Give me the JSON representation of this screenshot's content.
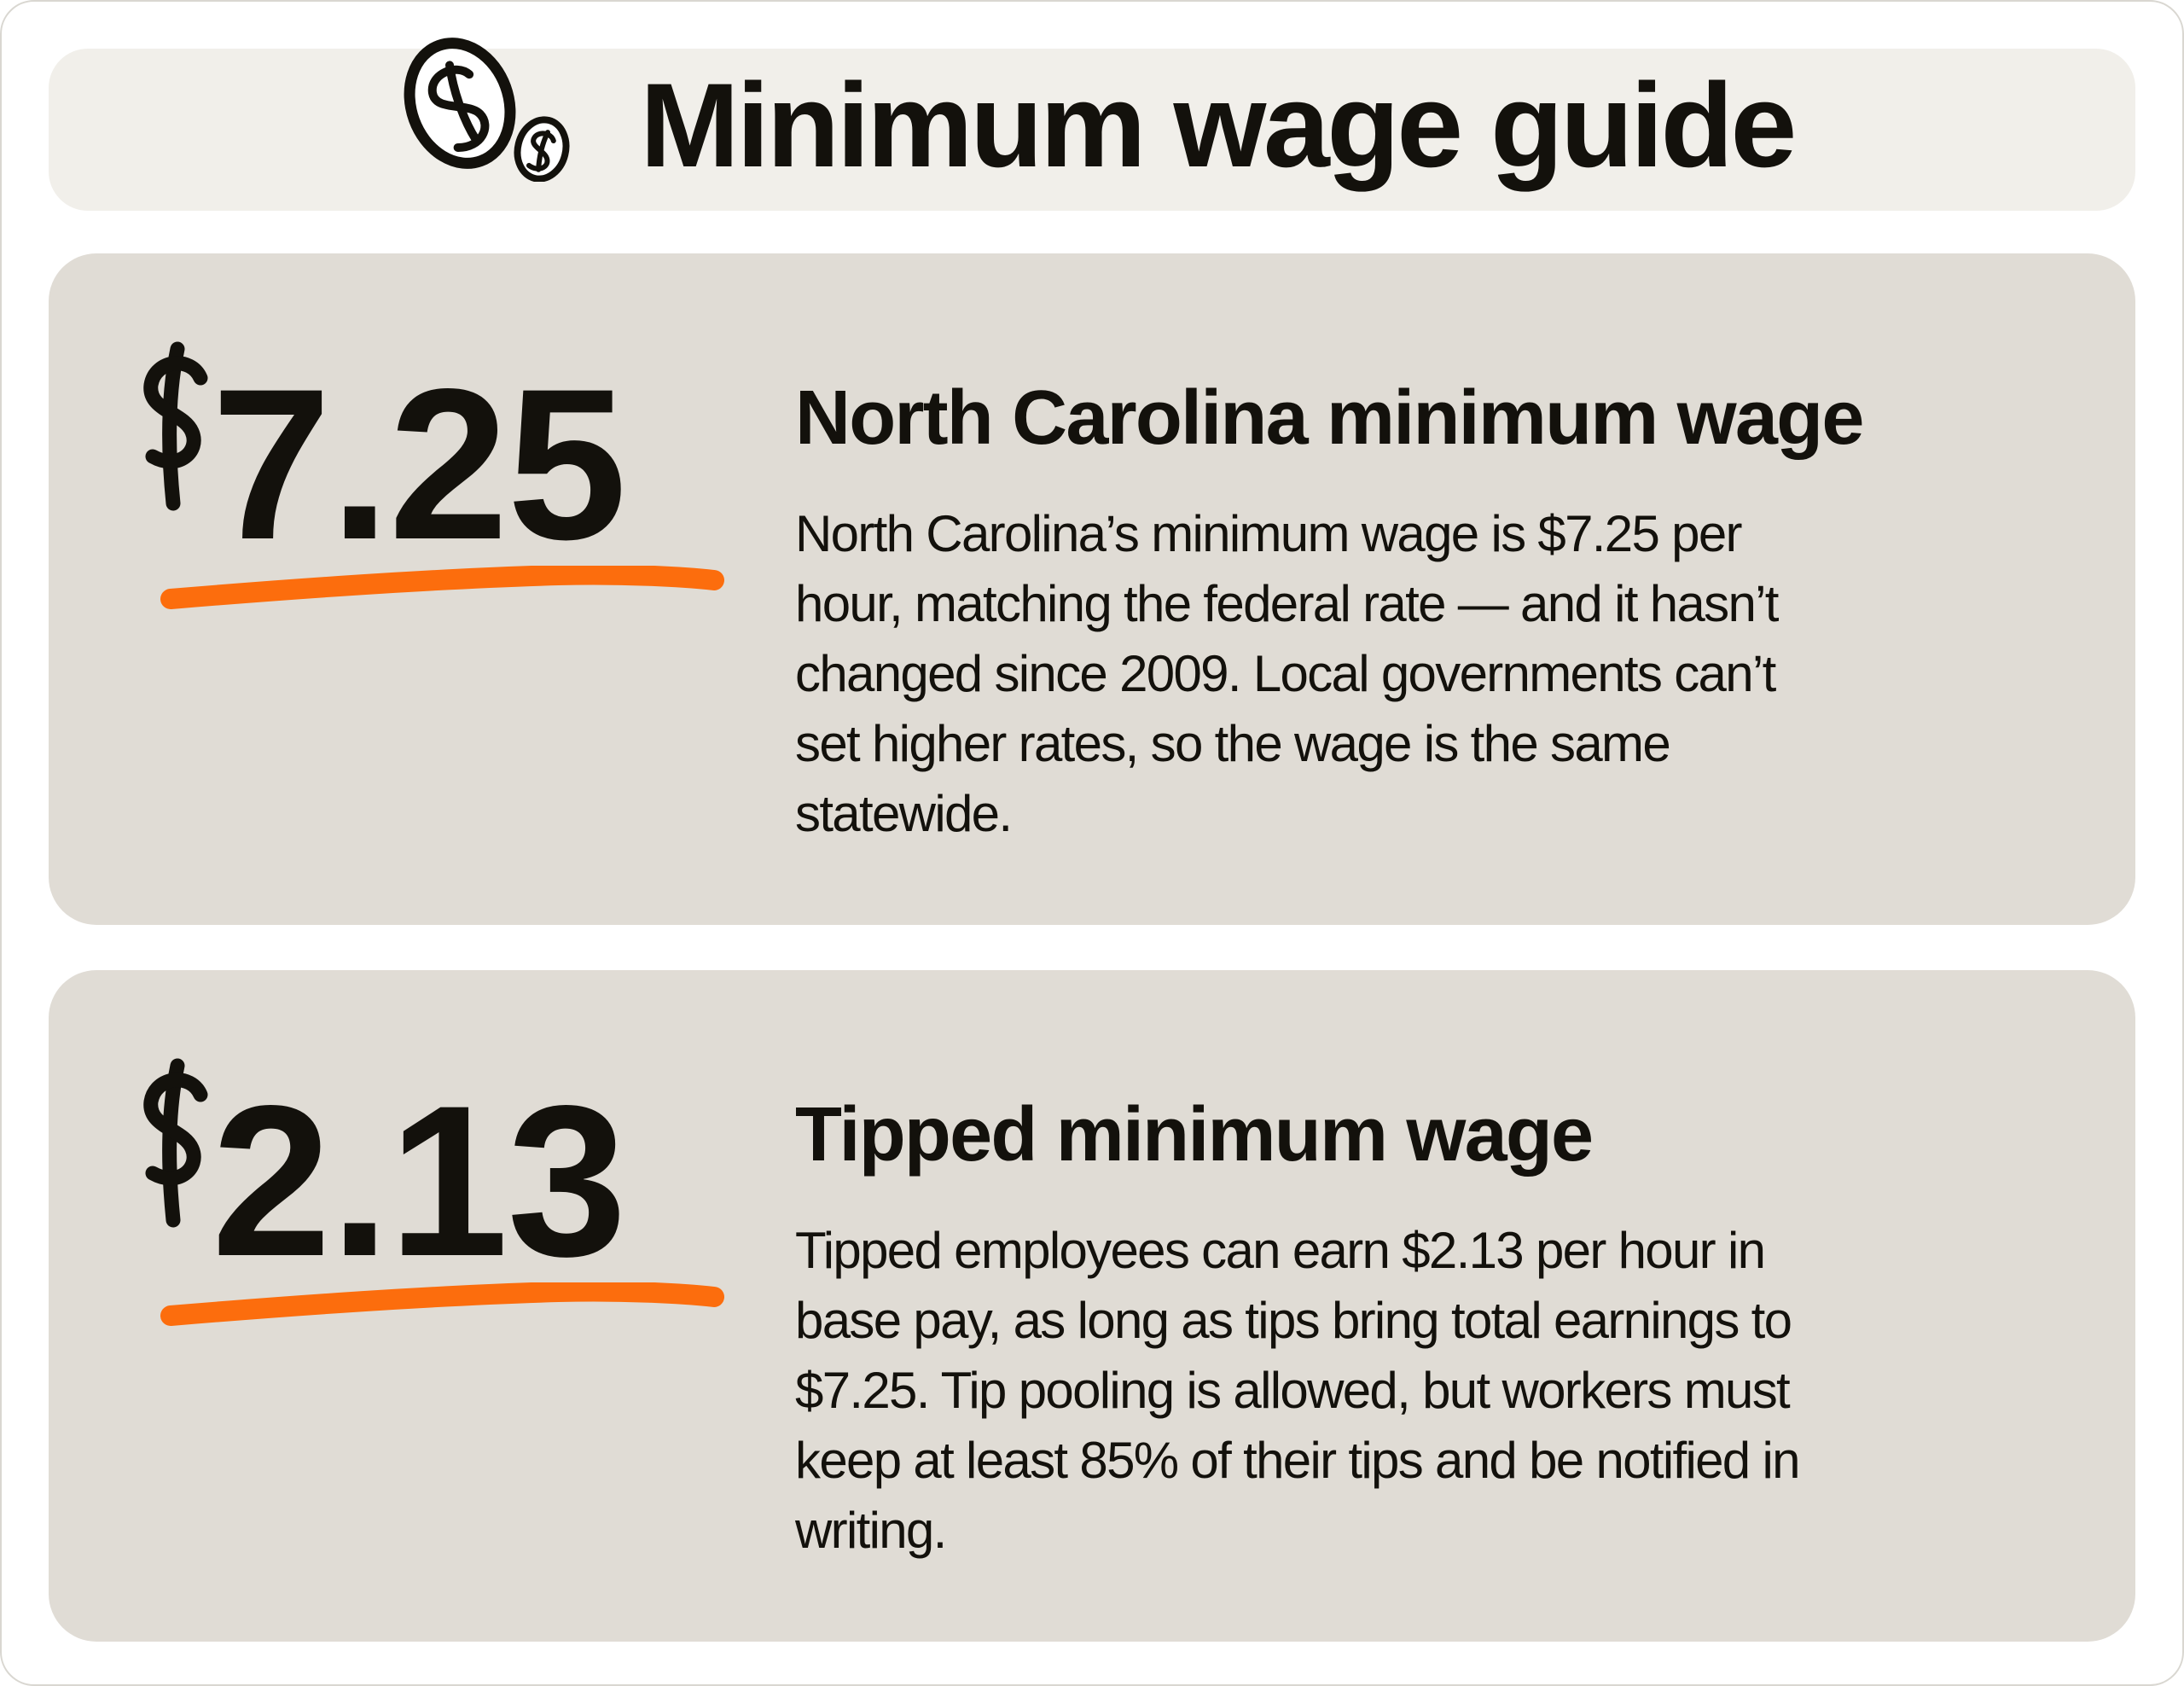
{
  "header": {
    "title": "Minimum wage guide",
    "icon": "coins-dollar-icon"
  },
  "cards": [
    {
      "currency_symbol": "$",
      "amount": "$7.25",
      "amount_value": "7.25",
      "heading": "North Carolina minimum wage",
      "body": "North Carolina’s minimum wage is $7.25 per hour, matching the federal rate — and it hasn’t changed since 2009. Local governments can’t set higher rates, so the wage is the same statewide.",
      "body_lines": [
        "North Carolina’s minimum wage is $7.25 per",
        "hour, matching the federal rate — and it hasn’t",
        "changed since 2009. Local governments can’t",
        "set higher rates, so the wage is the same",
        "statewide."
      ]
    },
    {
      "currency_symbol": "$",
      "amount": "$2.13",
      "amount_value": "2.13",
      "heading": "Tipped minimum wage",
      "body": "Tipped employees can earn $2.13 per hour in base pay, as long as tips bring total earnings to $7.25. Tip pooling is allowed, but workers must keep at least 85% of their tips and be notified in writing.",
      "body_lines": [
        "Tipped employees can earn $2.13 per hour in",
        "base pay, as long as tips bring total earnings to",
        "$7.25. Tip pooling is allowed, but workers must",
        "keep at least 85% of their tips and be notified in",
        "writing."
      ]
    }
  ],
  "colors": {
    "accent_orange": "#fc6d0d",
    "card_background": "#e0dcd5",
    "header_background": "#f1efea",
    "text": "#13110c",
    "page_background": "#ffffff"
  }
}
